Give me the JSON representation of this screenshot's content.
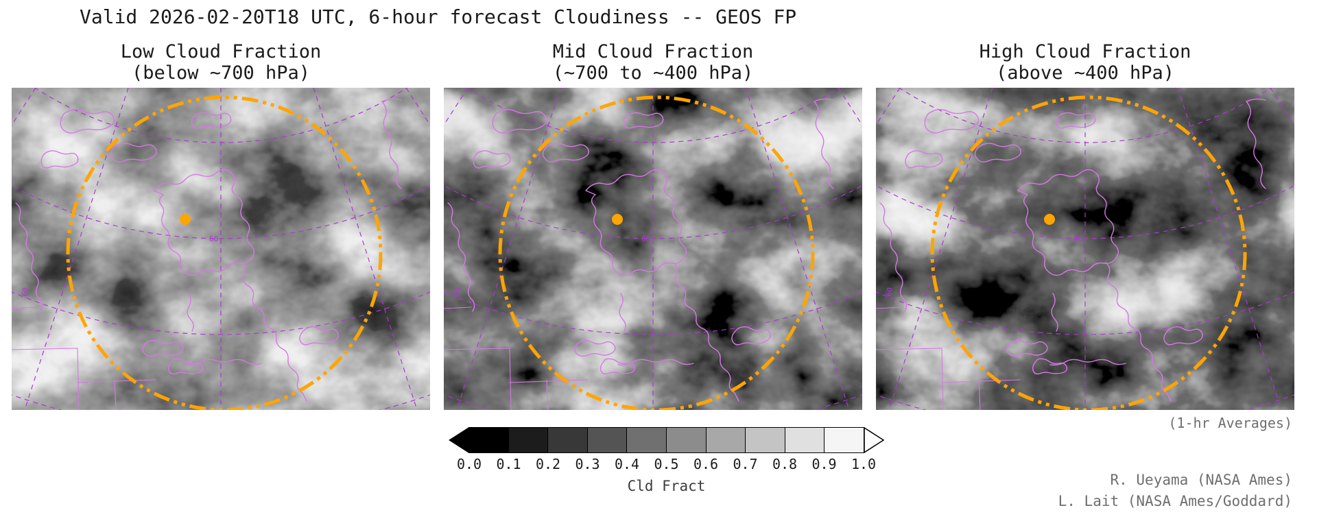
{
  "header": {
    "title": "Valid 2026-02-20T18 UTC, 6-hour forecast Cloudiness -- GEOS FP"
  },
  "panels": [
    {
      "id": "low",
      "title_line1": "Low Cloud Fraction",
      "title_line2": "(below ~700 hPa)"
    },
    {
      "id": "mid",
      "title_line1": "Mid Cloud Fraction",
      "title_line2": "(~700 to ~400 hPa)"
    },
    {
      "id": "high",
      "title_line1": "High Cloud Fraction",
      "title_line2": "(above ~400 hPa)"
    }
  ],
  "colorbar": {
    "label": "Cld Fract",
    "ticks": [
      "0.0",
      "0.1",
      "0.2",
      "0.3",
      "0.4",
      "0.5",
      "0.6",
      "0.7",
      "0.8",
      "0.9",
      "1.0"
    ],
    "colors": [
      "#000000",
      "#1c1c1c",
      "#383838",
      "#545454",
      "#707070",
      "#8c8c8c",
      "#a8a8a8",
      "#c4c4c4",
      "#e0e0e0",
      "#f5f5f5"
    ]
  },
  "annotations": {
    "averages": "(1-hr Averages)",
    "credit1": "R. Ueyama (NASA Ames)",
    "credit2": "L. Lait (NASA Ames/Goddard)"
  },
  "map": {
    "graticule_label": "60",
    "colors": {
      "coastline": "#d678e6",
      "graticule": "#a93ad0",
      "ring": "#ffa500",
      "marker": "#ffa500"
    }
  },
  "chart_data": [
    {
      "type": "heatmap",
      "title": "Low Cloud Fraction",
      "subtitle": "(below ~700 hPa)",
      "variable": "Cld Fract",
      "value_range": [
        0.0,
        1.0
      ],
      "colorbar_ticks": [
        0.0,
        0.1,
        0.2,
        0.3,
        0.4,
        0.5,
        0.6,
        0.7,
        0.8,
        0.9,
        1.0
      ],
      "colorbar_label": "Cld Fract",
      "palette": "grayscale: 0.0 = black, 1.0 = white",
      "figure_title": "Valid 2026-02-20T18 UTC, 6-hour forecast Cloudiness -- GEOS FP",
      "averaging": "(1-hr Averages)"
    },
    {
      "type": "heatmap",
      "title": "Mid Cloud Fraction",
      "subtitle": "(~700 to ~400 hPa)",
      "variable": "Cld Fract",
      "value_range": [
        0.0,
        1.0
      ],
      "colorbar_ticks": [
        0.0,
        0.1,
        0.2,
        0.3,
        0.4,
        0.5,
        0.6,
        0.7,
        0.8,
        0.9,
        1.0
      ],
      "colorbar_label": "Cld Fract",
      "palette": "grayscale: 0.0 = black, 1.0 = white",
      "figure_title": "Valid 2026-02-20T18 UTC, 6-hour forecast Cloudiness -- GEOS FP",
      "averaging": "(1-hr Averages)"
    },
    {
      "type": "heatmap",
      "title": "High Cloud Fraction",
      "subtitle": "(above ~400 hPa)",
      "variable": "Cld Fract",
      "value_range": [
        0.0,
        1.0
      ],
      "colorbar_ticks": [
        0.0,
        0.1,
        0.2,
        0.3,
        0.4,
        0.5,
        0.6,
        0.7,
        0.8,
        0.9,
        1.0
      ],
      "colorbar_label": "Cld Fract",
      "palette": "grayscale: 0.0 = black, 1.0 = white",
      "figure_title": "Valid 2026-02-20T18 UTC, 6-hour forecast Cloudiness -- GEOS FP",
      "averaging": "(1-hr Averages)"
    }
  ]
}
